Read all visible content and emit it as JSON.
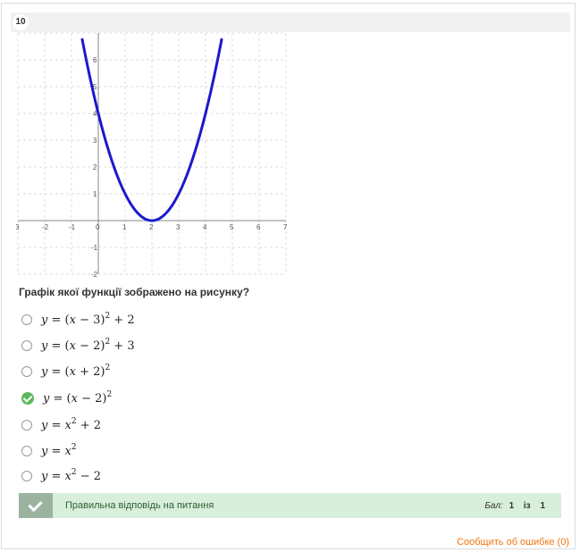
{
  "question": {
    "number": "10",
    "text": "Графік якої функції зображено на рисунку?"
  },
  "graph": {
    "x_ticks": [
      "3",
      "-2",
      "-1",
      "0",
      "1",
      "2",
      "3",
      "4",
      "5",
      "6",
      "7"
    ],
    "y_ticks": [
      "6",
      "5",
      "4",
      "3",
      "2",
      "1",
      "-1",
      "-2"
    ],
    "curve_color": "#1a1acc"
  },
  "options": [
    {
      "formula": "y = (x − 3)² + 2",
      "selected": false
    },
    {
      "formula": "y = (x − 2)² + 3",
      "selected": false
    },
    {
      "formula": "y = (x + 2)²",
      "selected": false
    },
    {
      "formula": "y = (x − 2)²",
      "selected": true
    },
    {
      "formula": "y = x² + 2",
      "selected": false
    },
    {
      "formula": "y = x²",
      "selected": false
    },
    {
      "formula": "y = x² − 2",
      "selected": false
    }
  ],
  "result": {
    "text": "Правильна відповідь на питання",
    "score_label": "Бал:",
    "score_value": "1",
    "score_of": "із",
    "score_max": "1",
    "color": "#d8efdb"
  },
  "report_link": "Сообщить об ошибке (0)"
}
